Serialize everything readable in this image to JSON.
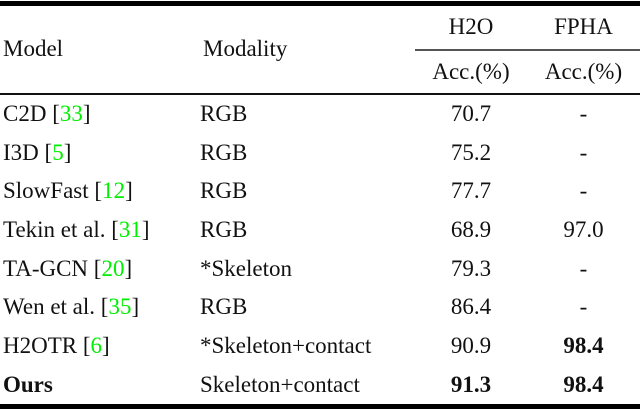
{
  "colors": {
    "text": "#111111",
    "citation_green": "#00ee00",
    "rule_heavy": "#000000",
    "rule_light": "#555555"
  },
  "table": {
    "header": {
      "model": "Model",
      "modality": "Modality",
      "group_cols": [
        {
          "label": "H2O",
          "sub": "Acc.(%)"
        },
        {
          "label": "FPHA",
          "sub": "Acc.(%)"
        }
      ]
    },
    "rows": [
      {
        "model": "C2D",
        "cite": "33",
        "modality": "RGB",
        "h2o": "70.7",
        "fpha": "-",
        "model_bold": false,
        "h2o_bold": false,
        "fpha_bold": false
      },
      {
        "model": "I3D",
        "cite": "5",
        "modality": "RGB",
        "h2o": "75.2",
        "fpha": "-",
        "model_bold": false,
        "h2o_bold": false,
        "fpha_bold": false
      },
      {
        "model": "SlowFast",
        "cite": "12",
        "modality": "RGB",
        "h2o": "77.7",
        "fpha": "-",
        "model_bold": false,
        "h2o_bold": false,
        "fpha_bold": false
      },
      {
        "model": "Tekin et al.",
        "cite": "31",
        "modality": "RGB",
        "h2o": "68.9",
        "fpha": "97.0",
        "model_bold": false,
        "h2o_bold": false,
        "fpha_bold": false
      },
      {
        "model": "TA-GCN",
        "cite": "20",
        "modality": "*Skeleton",
        "h2o": "79.3",
        "fpha": "-",
        "model_bold": false,
        "h2o_bold": false,
        "fpha_bold": false
      },
      {
        "model": "Wen et al.",
        "cite": "35",
        "modality": "RGB",
        "h2o": "86.4",
        "fpha": "-",
        "model_bold": false,
        "h2o_bold": false,
        "fpha_bold": false
      },
      {
        "model": "H2OTR",
        "cite": "6",
        "modality": "*Skeleton+contact",
        "h2o": "90.9",
        "fpha": "98.4",
        "model_bold": false,
        "h2o_bold": false,
        "fpha_bold": true
      },
      {
        "model": "Ours",
        "cite": null,
        "modality": "Skeleton+contact",
        "h2o": "91.3",
        "fpha": "98.4",
        "model_bold": true,
        "h2o_bold": true,
        "fpha_bold": true
      }
    ]
  }
}
